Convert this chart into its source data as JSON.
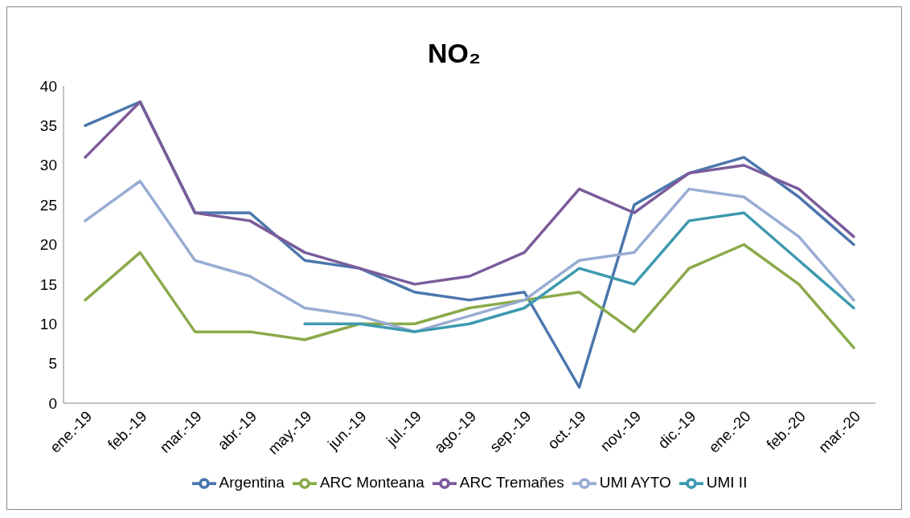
{
  "chart_data": {
    "type": "line",
    "title": "NO₂",
    "categories": [
      "ene.-19",
      "feb.-19",
      "mar.-19",
      "abr.-19",
      "may.-19",
      "jun.-19",
      "jul.-19",
      "ago.-19",
      "sep.-19",
      "oct.-19",
      "nov.-19",
      "dic.-19",
      "ene.-20",
      "feb.-20",
      "mar.-20"
    ],
    "series": [
      {
        "name": "Argentina",
        "color": "#4a76ad",
        "values": [
          35,
          38,
          24,
          24,
          18,
          17,
          14,
          13,
          14,
          2,
          25,
          29,
          31,
          26,
          20
        ]
      },
      {
        "name": "ARC Monteana",
        "color": "#8aaa4a",
        "values": [
          13,
          19,
          9,
          9,
          8,
          10,
          10,
          12,
          13,
          14,
          9,
          17,
          20,
          15,
          7
        ]
      },
      {
        "name": "ARC Tremañes",
        "color": "#7b5b9b",
        "values": [
          31,
          38,
          24,
          23,
          19,
          17,
          15,
          16,
          19,
          27,
          24,
          29,
          30,
          27,
          21
        ]
      },
      {
        "name": "UMI AYTO",
        "color": "#98acd3",
        "values": [
          23,
          28,
          18,
          16,
          12,
          11,
          9,
          11,
          13,
          18,
          19,
          27,
          26,
          21,
          13
        ]
      },
      {
        "name": "UMI II",
        "color": "#3e99af",
        "values": [
          null,
          null,
          null,
          null,
          10,
          10,
          9,
          10,
          12,
          17,
          15,
          23,
          24,
          18,
          12
        ]
      }
    ],
    "ylim": [
      0,
      40
    ],
    "yticks": [
      0,
      5,
      10,
      15,
      20,
      25,
      30,
      35,
      40
    ],
    "grid": false,
    "legend": "bottom",
    "marker": "none",
    "line_style": "solid"
  }
}
